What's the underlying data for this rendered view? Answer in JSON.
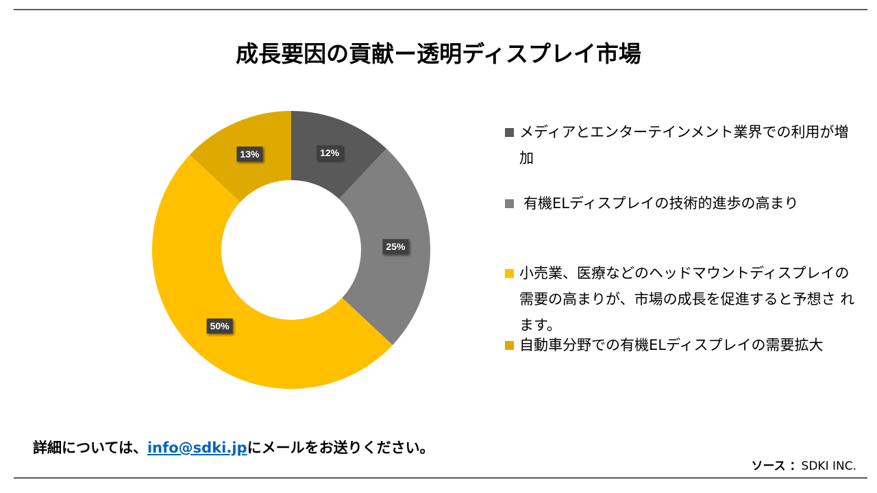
{
  "chart_data": {
    "type": "pie",
    "variant": "donut",
    "title": "成長要因の貢献ー透明ディスプレイ市場",
    "legend_position": "right",
    "slices": [
      {
        "label": "メディアとエンターテインメント業界での利用が増加",
        "value": 12,
        "display": "12%",
        "color": "#595959"
      },
      {
        "label": "有機ELディスプレイの技術的進歩の高まり",
        "value": 25,
        "display": "25%",
        "color": "#808080"
      },
      {
        "label": "小売業、医療などのヘッドマウントディスプレイの需要の高まりが、市場の成長を促進すると予想さ れます。",
        "value": 50,
        "display": "50%",
        "color": "#FFC000"
      },
      {
        "label": "自動車分野での有機ELディスプレイの需要拡大",
        "value": 13,
        "display": "13%",
        "color": "#DEA900"
      }
    ]
  },
  "footer": {
    "note_prefix": "詳細については、",
    "email": "info@sdki.jp",
    "note_suffix": "にメールをお送りください。",
    "source_label": "ソース ：",
    "source_value": "SDKI INC."
  }
}
